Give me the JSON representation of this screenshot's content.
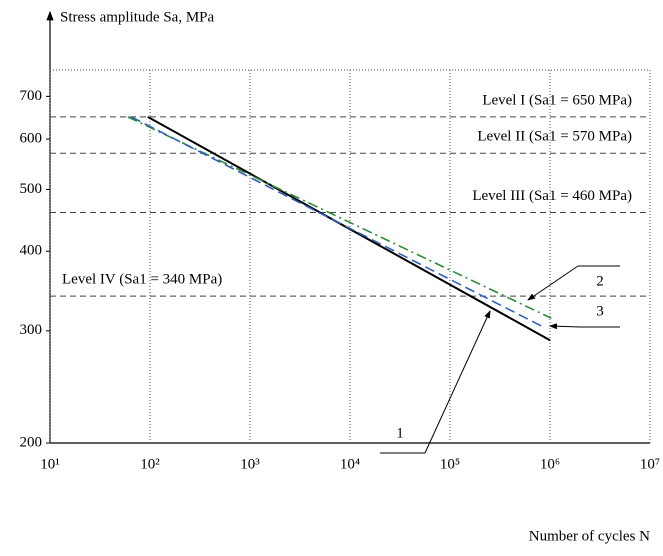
{
  "chart_data": {
    "type": "line",
    "y_label": "Stress amplitude Sa, MPa",
    "x_label": "Number of cycles N",
    "log_x": true,
    "log_y": true,
    "xlim": [
      10,
      10000000
    ],
    "ylim": [
      200,
      770
    ],
    "xticks": [
      {
        "value": 10,
        "label": "10¹"
      },
      {
        "value": 100,
        "label": "10²"
      },
      {
        "value": 1000,
        "label": "10³"
      },
      {
        "value": 10000,
        "label": "10⁴"
      },
      {
        "value": 100000,
        "label": "10⁵"
      },
      {
        "value": 1000000,
        "label": "10⁶"
      },
      {
        "value": 10000000,
        "label": "10⁷"
      }
    ],
    "yticks": [
      200,
      300,
      400,
      500,
      600,
      700
    ],
    "series": [
      {
        "name": "1",
        "color": "#000000",
        "style": "solid",
        "x": [
          95,
          1000000
        ],
        "values": [
          650,
          290
        ]
      },
      {
        "name": "2",
        "color": "#2e8b3a",
        "style": "dashdot",
        "x": [
          60,
          1030000
        ],
        "values": [
          650,
          314
        ]
      },
      {
        "name": "3",
        "color": "#3060c0",
        "style": "dashed",
        "x": [
          65,
          900000
        ],
        "values": [
          650,
          303
        ]
      }
    ],
    "levels": [
      {
        "label": "Level I (Sa1 = 650 MPa)",
        "value": 650
      },
      {
        "label": "Level II (Sa1 = 570 MPa)",
        "value": 570
      },
      {
        "label": "Level III (Sa1 = 460 MPa)",
        "value": 460
      },
      {
        "label": "Level IV (Sa1 = 340 MPa)",
        "value": 340
      }
    ]
  }
}
